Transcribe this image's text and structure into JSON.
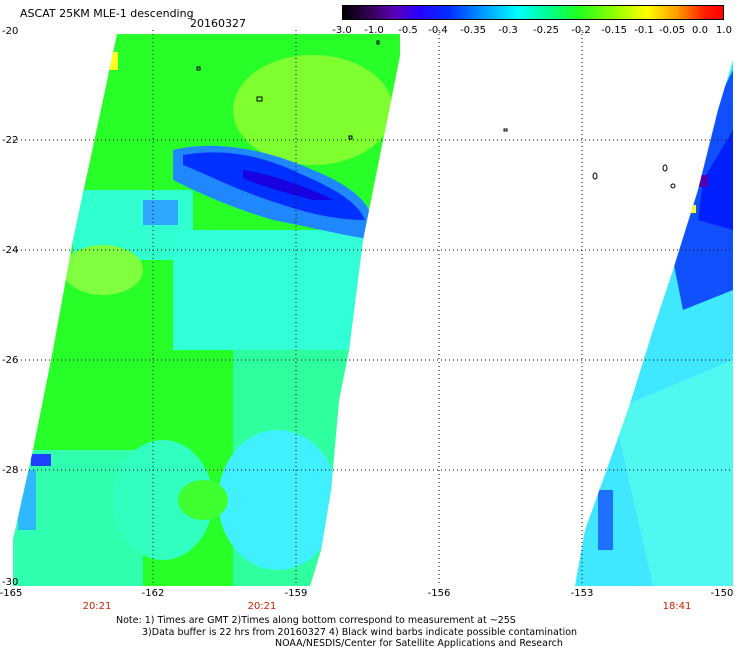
{
  "header": {
    "title": "ASCAT 25KM MLE-1 descending",
    "date": "20160327"
  },
  "colorbar": {
    "ticks": [
      "-3.0",
      "-1.0",
      "-0.5",
      "-0.4",
      "-0.35",
      "-0.3",
      "-0.25",
      "-0.2",
      "-0.15",
      "-0.1",
      "-0.05",
      "0.0",
      "1.0"
    ]
  },
  "map": {
    "y_labels": [
      "-20",
      "-22",
      "-24",
      "-26",
      "-28",
      "-30"
    ],
    "x_labels": [
      "-165",
      "-162",
      "-159",
      "-156",
      "-153",
      "-150"
    ],
    "time_labels": [
      "20:21",
      "20:21",
      "18:41"
    ]
  },
  "notes": [
    "Note: 1) Times are GMT 2)Times along bottom correspond to measurement at ~25S",
    "3)Data buffer is 22 hrs from 20160327 4) Black wind barbs indicate possible contamination",
    "NOAA/NESDIS/Center for Satellite Applications and Research"
  ],
  "colors": {
    "swath_green": "#22ff22",
    "swath_cyan": "#22ffee",
    "low_blue": "#0020ff",
    "time_red": "#cc2200"
  }
}
